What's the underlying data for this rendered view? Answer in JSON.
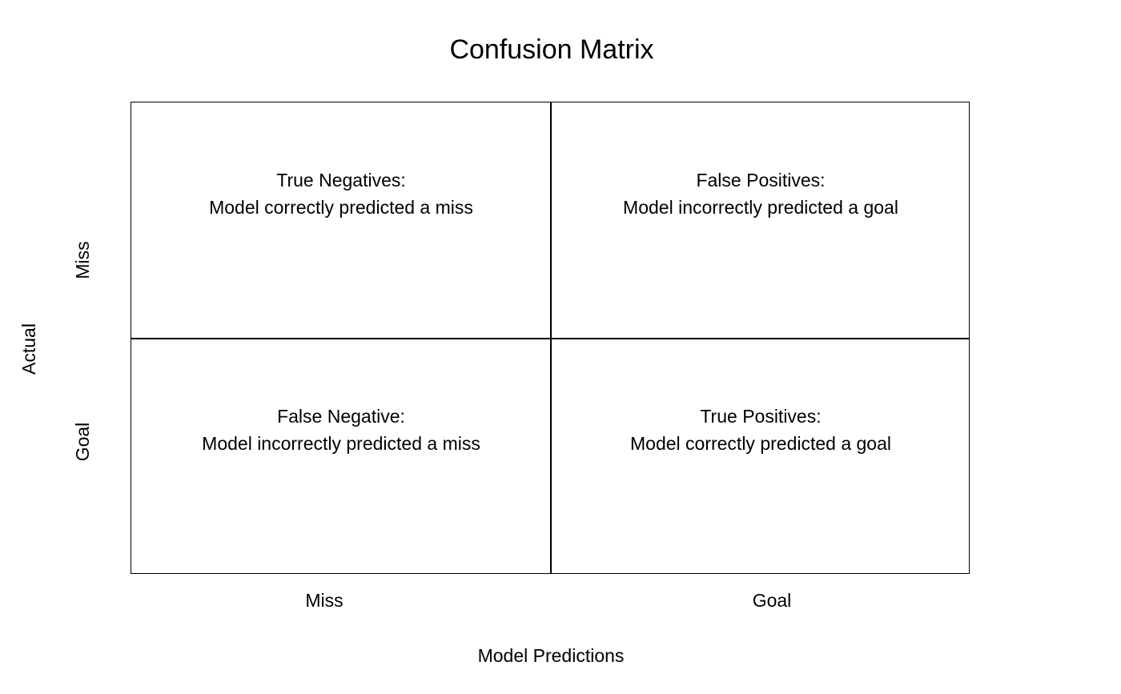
{
  "title": "Confusion Matrix",
  "axes": {
    "x_label": "Model Predictions",
    "y_label": "Actual",
    "columns": [
      "Miss",
      "Goal"
    ],
    "rows": [
      "Miss",
      "Goal"
    ]
  },
  "cells": {
    "true_negatives": {
      "heading": "True Negatives:",
      "description": "Model correctly predicted a miss"
    },
    "false_positives": {
      "heading": "False Positives:",
      "description": "Model incorrectly predicted a goal"
    },
    "false_negative": {
      "heading": "False Negative:",
      "description": "Model incorrectly predicted a miss"
    },
    "true_positives": {
      "heading": "True Positives:",
      "description": "Model correctly predicted a goal"
    }
  }
}
